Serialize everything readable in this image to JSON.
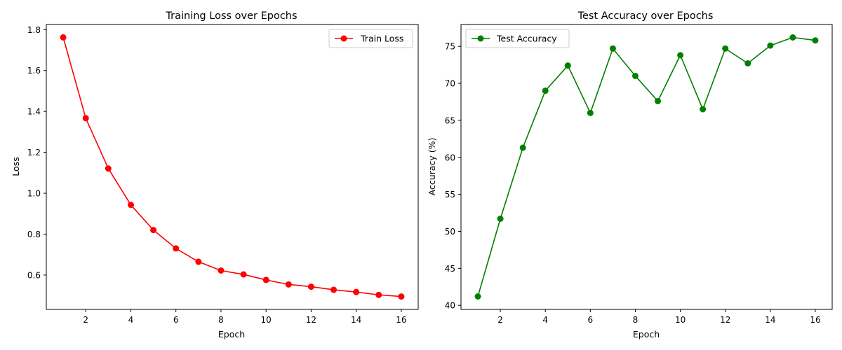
{
  "chart_data": [
    {
      "type": "line",
      "title": "Training Loss over Epochs",
      "xlabel": "Epoch",
      "ylabel": "Loss",
      "x": [
        1,
        2,
        3,
        4,
        5,
        6,
        7,
        8,
        9,
        10,
        11,
        12,
        13,
        14,
        15,
        16
      ],
      "series": [
        {
          "name": "Train Loss",
          "color": "#ff0000",
          "marker": "circle",
          "values": [
            1.762,
            1.367,
            1.121,
            0.943,
            0.82,
            0.73,
            0.665,
            0.622,
            0.603,
            0.576,
            0.554,
            0.543,
            0.528,
            0.517,
            0.503,
            0.495
          ]
        }
      ],
      "xlim": [
        0.25,
        16.75
      ],
      "ylim": [
        0.432,
        1.825
      ],
      "xticks": [
        2,
        4,
        6,
        8,
        10,
        12,
        14,
        16
      ],
      "xtick_labels": [
        "2",
        "4",
        "6",
        "8",
        "10",
        "12",
        "14",
        "16"
      ],
      "yticks": [
        0.6,
        0.8,
        1.0,
        1.2,
        1.4,
        1.6,
        1.8
      ],
      "ytick_labels": [
        "0.6",
        "0.8",
        "1.0",
        "1.2",
        "1.4",
        "1.6",
        "1.8"
      ],
      "grid": false,
      "legend_position": "upper right"
    },
    {
      "type": "line",
      "title": "Test Accuracy over Epochs",
      "xlabel": "Epoch",
      "ylabel": "Accuracy (%)",
      "x": [
        1,
        2,
        3,
        4,
        5,
        6,
        7,
        8,
        9,
        10,
        11,
        12,
        13,
        14,
        15,
        16
      ],
      "series": [
        {
          "name": "Test Accuracy",
          "color": "#008000",
          "marker": "circle",
          "values": [
            41.2,
            51.7,
            61.3,
            69.0,
            72.4,
            66.0,
            74.7,
            71.0,
            67.6,
            73.8,
            66.5,
            74.7,
            72.7,
            75.1,
            76.2,
            75.8
          ]
        }
      ],
      "xlim": [
        0.25,
        16.75
      ],
      "ylim": [
        39.45,
        77.95
      ],
      "xticks": [
        2,
        4,
        6,
        8,
        10,
        12,
        14,
        16
      ],
      "xtick_labels": [
        "2",
        "4",
        "6",
        "8",
        "10",
        "12",
        "14",
        "16"
      ],
      "yticks": [
        40,
        45,
        50,
        55,
        60,
        65,
        70,
        75
      ],
      "ytick_labels": [
        "40",
        "45",
        "50",
        "55",
        "60",
        "65",
        "70",
        "75"
      ],
      "grid": false,
      "legend_position": "upper left"
    }
  ]
}
